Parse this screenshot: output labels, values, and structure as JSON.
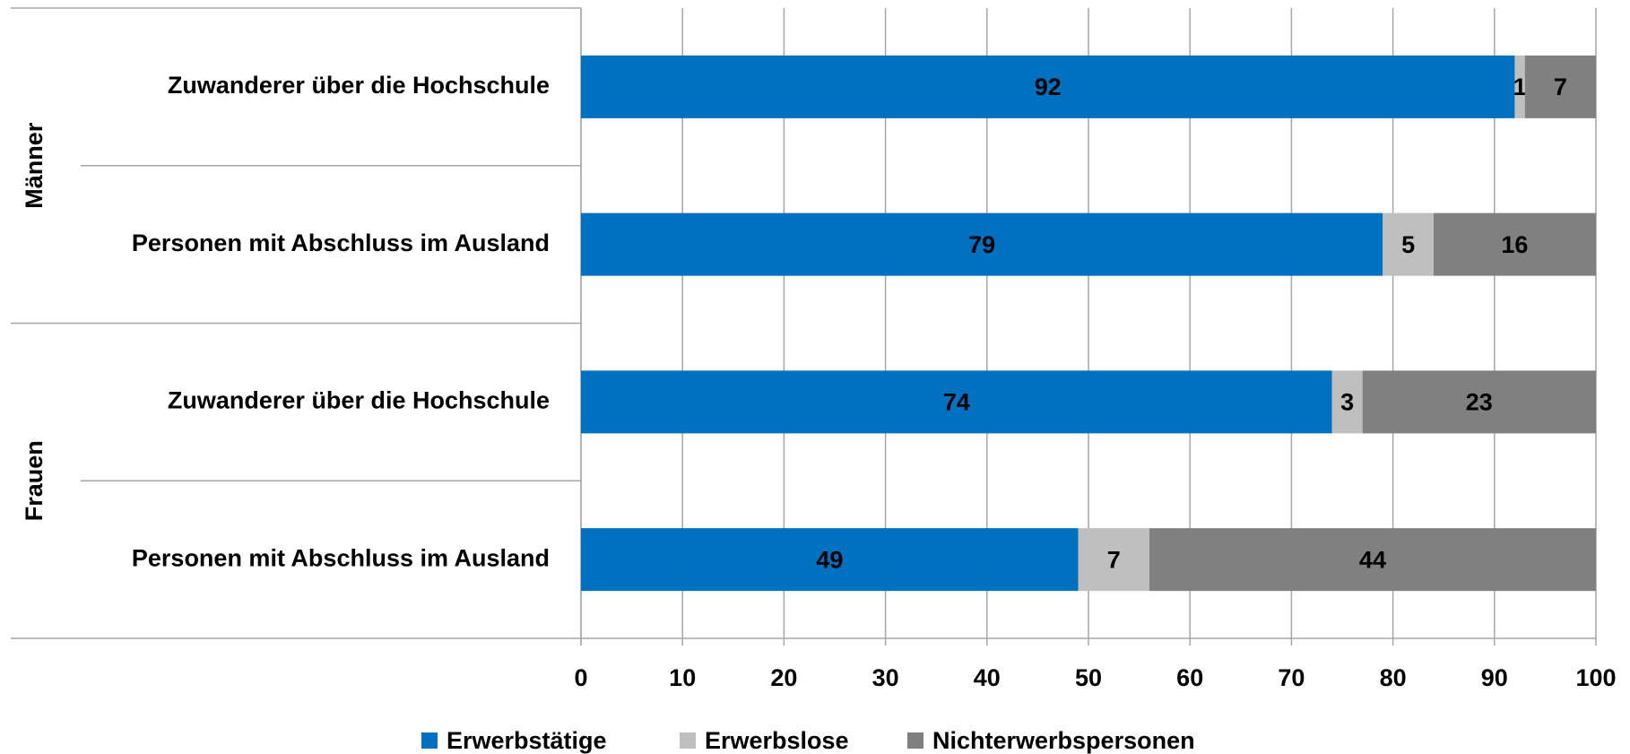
{
  "chart_data": {
    "type": "stacked_bar_horizontal",
    "groups": [
      {
        "label": "Männer",
        "categories": [
          "Zuwanderer über die Hochschule",
          "Personen mit Abschluss im Ausland"
        ]
      },
      {
        "label": "Frauen",
        "categories": [
          "Zuwanderer über die Hochschule",
          "Personen mit Abschluss im Ausland"
        ]
      }
    ],
    "series": [
      {
        "name": "Erwerbstätige",
        "color": "#0070c0",
        "values": [
          92,
          79,
          74,
          49
        ]
      },
      {
        "name": "Erwerbslose",
        "color": "#bfbfbf",
        "values": [
          1,
          5,
          3,
          7
        ]
      },
      {
        "name": "Nichterwerbspersonen",
        "color": "#808080",
        "values": [
          7,
          16,
          23,
          44
        ]
      }
    ],
    "xlim": [
      0,
      100
    ],
    "xticks": [
      0,
      10,
      20,
      30,
      40,
      50,
      60,
      70,
      80,
      90,
      100
    ],
    "grid": true
  }
}
